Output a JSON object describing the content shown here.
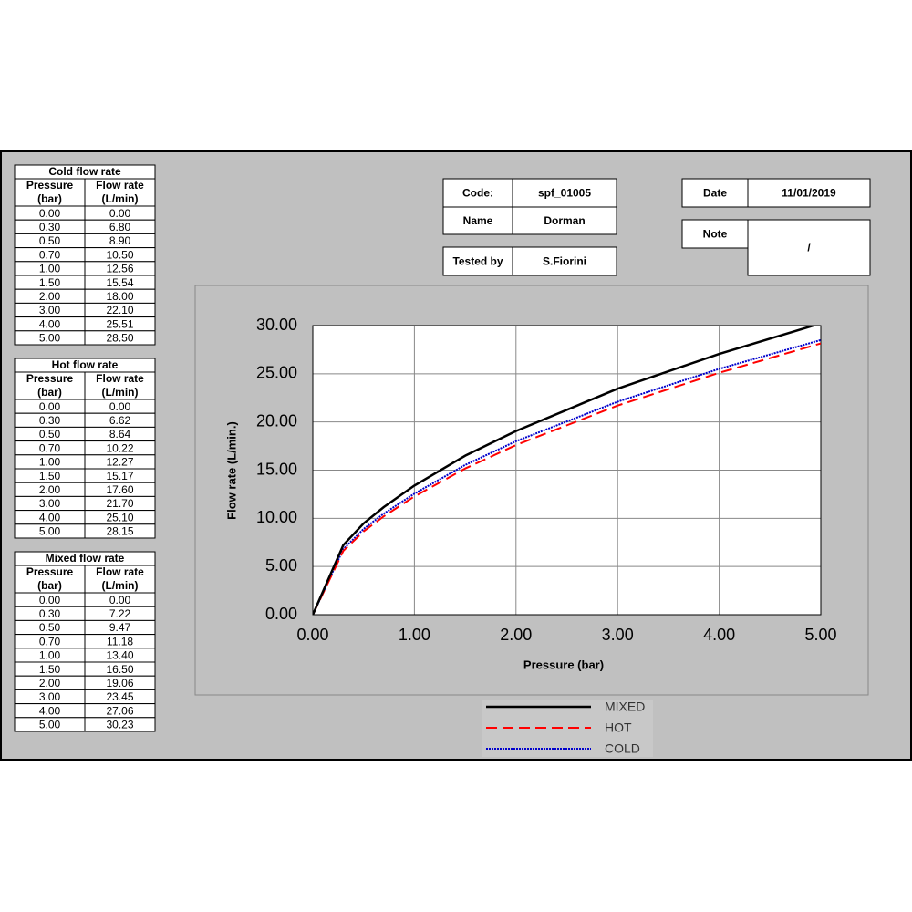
{
  "tables": [
    {
      "title": "Cold flow rate",
      "headers": [
        [
          "Pressure",
          "(bar)"
        ],
        [
          "Flow rate",
          "(L/min)"
        ]
      ],
      "rows": [
        [
          "0.00",
          "0.00"
        ],
        [
          "0.30",
          "6.80"
        ],
        [
          "0.50",
          "8.90"
        ],
        [
          "0.70",
          "10.50"
        ],
        [
          "1.00",
          "12.56"
        ],
        [
          "1.50",
          "15.54"
        ],
        [
          "2.00",
          "18.00"
        ],
        [
          "3.00",
          "22.10"
        ],
        [
          "4.00",
          "25.51"
        ],
        [
          "5.00",
          "28.50"
        ]
      ]
    },
    {
      "title": "Hot flow rate",
      "headers": [
        [
          "Pressure",
          "(bar)"
        ],
        [
          "Flow rate",
          "(L/min)"
        ]
      ],
      "rows": [
        [
          "0.00",
          "0.00"
        ],
        [
          "0.30",
          "6.62"
        ],
        [
          "0.50",
          "8.64"
        ],
        [
          "0.70",
          "10.22"
        ],
        [
          "1.00",
          "12.27"
        ],
        [
          "1.50",
          "15.17"
        ],
        [
          "2.00",
          "17.60"
        ],
        [
          "3.00",
          "21.70"
        ],
        [
          "4.00",
          "25.10"
        ],
        [
          "5.00",
          "28.15"
        ]
      ]
    },
    {
      "title": "Mixed flow rate",
      "headers": [
        [
          "Pressure",
          "(bar)"
        ],
        [
          "Flow rate",
          "(L/min)"
        ]
      ],
      "rows": [
        [
          "0.00",
          "0.00"
        ],
        [
          "0.30",
          "7.22"
        ],
        [
          "0.50",
          "9.47"
        ],
        [
          "0.70",
          "11.18"
        ],
        [
          "1.00",
          "13.40"
        ],
        [
          "1.50",
          "16.50"
        ],
        [
          "2.00",
          "19.06"
        ],
        [
          "3.00",
          "23.45"
        ],
        [
          "4.00",
          "27.06"
        ],
        [
          "5.00",
          "30.23"
        ]
      ]
    }
  ],
  "info": {
    "code_label": "Code:",
    "code": "spf_01005",
    "name_label": "Name",
    "name": "Dorman",
    "tested_label": "Tested by",
    "tested": "S.Fiorini",
    "date_label": "Date",
    "date": "11/01/2019",
    "note_label": "Note",
    "note": "/"
  },
  "chart_data": {
    "type": "line",
    "x_label": "Pressure (bar)",
    "y_label": "Flow rate (L/min.)",
    "x": [
      0,
      0.3,
      0.5,
      0.7,
      1,
      1.5,
      2,
      3,
      4,
      5
    ],
    "series": [
      {
        "name": "MIXED",
        "color": "#000000",
        "values": [
          0,
          7.22,
          9.47,
          11.18,
          13.4,
          16.5,
          19.06,
          23.45,
          27.06,
          30.23
        ]
      },
      {
        "name": "HOT",
        "color": "#ff0000",
        "values": [
          0,
          6.62,
          8.64,
          10.22,
          12.27,
          15.17,
          17.6,
          21.7,
          25.1,
          28.15
        ]
      },
      {
        "name": "COLD",
        "color": "#0000cc",
        "values": [
          0,
          6.8,
          8.9,
          10.5,
          12.56,
          15.54,
          18,
          22.1,
          25.51,
          28.5
        ]
      }
    ],
    "xlim": [
      0,
      5
    ],
    "ylim": [
      0,
      30
    ],
    "xticks": [
      {
        "value": 0,
        "label": "0.00"
      },
      {
        "value": 1,
        "label": "1.00"
      },
      {
        "value": 2,
        "label": "2.00"
      },
      {
        "value": 3,
        "label": "3.00"
      },
      {
        "value": 4,
        "label": "4.00"
      },
      {
        "value": 5,
        "label": "5.00"
      }
    ],
    "yticks": [
      {
        "value": 0,
        "label": "0.00"
      },
      {
        "value": 5,
        "label": "5.00"
      },
      {
        "value": 10,
        "label": "10.00"
      },
      {
        "value": 15,
        "label": "15.00"
      },
      {
        "value": 20,
        "label": "20.00"
      },
      {
        "value": 25,
        "label": "25.00"
      },
      {
        "value": 30,
        "label": "30.00"
      }
    ],
    "grid": true
  }
}
